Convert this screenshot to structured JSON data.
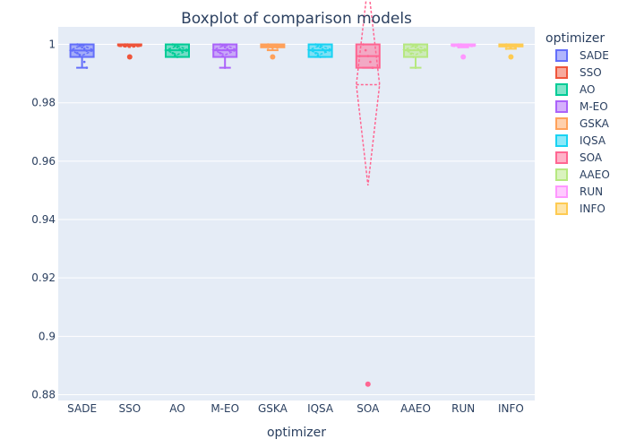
{
  "chart_data": {
    "type": "box",
    "title": "Boxplot of comparison models",
    "xlabel": "optimizer",
    "ylabel": "",
    "legend_title": "optimizer",
    "legend_placement": "right",
    "grid": true,
    "ylim": [
      0.878,
      1.006
    ],
    "y_ticks": [
      0.88,
      0.9,
      0.92,
      0.94,
      0.96,
      0.98,
      1
    ],
    "y_tick_labels": [
      "0.88",
      "0.9",
      "0.92",
      "0.94",
      "0.96",
      "0.98",
      "1"
    ],
    "colors": {
      "plot_bg": "#e5ecf6",
      "grid": "#ffffff",
      "text": "#2a3f5f"
    },
    "series": [
      {
        "name": "SADE",
        "color": "#636efa",
        "min": 0.992,
        "q1": 0.9957,
        "median": 0.9979,
        "mean": 0.998,
        "sd": 0.0018,
        "q3": 1.0,
        "max": 1.0,
        "outliers": [],
        "points": [
          1.0,
          0.9995,
          0.999,
          0.9985,
          0.9978,
          0.997,
          0.9962,
          0.9957,
          0.994,
          0.992
        ]
      },
      {
        "name": "SSO",
        "color": "#ef553b",
        "min": 0.9995,
        "q1": 0.9997,
        "median": 1.0,
        "mean": 0.9994,
        "sd": 0.0004,
        "q3": 1.0,
        "max": 1.0,
        "outliers": [
          0.9957
        ],
        "points": [
          1.0,
          1.0,
          0.9999,
          0.9998,
          0.9997,
          0.9996,
          0.9995,
          0.9957
        ]
      },
      {
        "name": "AO",
        "color": "#00cc96",
        "min": 0.9957,
        "q1": 0.9957,
        "median": 0.998,
        "mean": 0.998,
        "sd": 0.0015,
        "q3": 1.0,
        "max": 1.0,
        "outliers": [],
        "points": [
          1.0,
          0.9996,
          0.999,
          0.9984,
          0.9978,
          0.997,
          0.9963,
          0.9957
        ]
      },
      {
        "name": "M-EO",
        "color": "#ab63fa",
        "min": 0.992,
        "q1": 0.9957,
        "median": 0.998,
        "mean": 0.9981,
        "sd": 0.0017,
        "q3": 1.0,
        "max": 1.0,
        "outliers": [],
        "points": [
          1.0,
          0.9996,
          0.999,
          0.9984,
          0.9978,
          0.997,
          0.996,
          0.992
        ]
      },
      {
        "name": "GSKA",
        "color": "#ffa15a",
        "min": 0.998,
        "q1": 0.999,
        "median": 0.9996,
        "mean": 0.9993,
        "sd": 0.0005,
        "q3": 1.0,
        "max": 1.0,
        "outliers": [
          0.9957
        ],
        "points": [
          1.0,
          0.9998,
          0.9995,
          0.9992,
          0.9988,
          0.9982,
          0.9957
        ]
      },
      {
        "name": "IQSA",
        "color": "#19d3f3",
        "min": 0.9957,
        "q1": 0.9957,
        "median": 0.998,
        "mean": 0.9981,
        "sd": 0.0015,
        "q3": 1.0,
        "max": 1.0,
        "outliers": [],
        "points": [
          1.0,
          0.9996,
          0.999,
          0.9984,
          0.9978,
          0.997,
          0.9963,
          0.9957
        ]
      },
      {
        "name": "SOA",
        "color": "#ff6692",
        "min": 0.992,
        "q1": 0.992,
        "median": 0.996,
        "mean": 0.9862,
        "sd": 0.0345,
        "q3": 1.0,
        "max": 1.0,
        "outliers": [
          0.8836
        ],
        "points": [
          1.0,
          0.998,
          0.996,
          0.994,
          0.992,
          0.8836
        ]
      },
      {
        "name": "AAEO",
        "color": "#b6e880",
        "min": 0.992,
        "q1": 0.9957,
        "median": 0.998,
        "mean": 0.9981,
        "sd": 0.0016,
        "q3": 1.0,
        "max": 1.0,
        "outliers": [],
        "points": [
          1.0,
          0.9995,
          0.999,
          0.9984,
          0.9978,
          0.9968,
          0.9957,
          0.992
        ]
      },
      {
        "name": "RUN",
        "color": "#ff97ff",
        "min": 0.999,
        "q1": 0.9996,
        "median": 1.0,
        "mean": 0.9994,
        "sd": 0.0004,
        "q3": 1.0,
        "max": 1.0,
        "outliers": [
          0.9957
        ],
        "points": [
          1.0,
          1.0,
          0.9999,
          0.9997,
          0.9995,
          0.999,
          0.9957
        ]
      },
      {
        "name": "INFO",
        "color": "#fecb52",
        "min": 0.9985,
        "q1": 0.9993,
        "median": 0.9998,
        "mean": 0.9994,
        "sd": 0.0004,
        "q3": 1.0,
        "max": 1.0,
        "outliers": [
          0.9957
        ],
        "points": [
          1.0,
          0.9999,
          0.9997,
          0.9994,
          0.999,
          0.9985,
          0.9957
        ]
      }
    ]
  }
}
